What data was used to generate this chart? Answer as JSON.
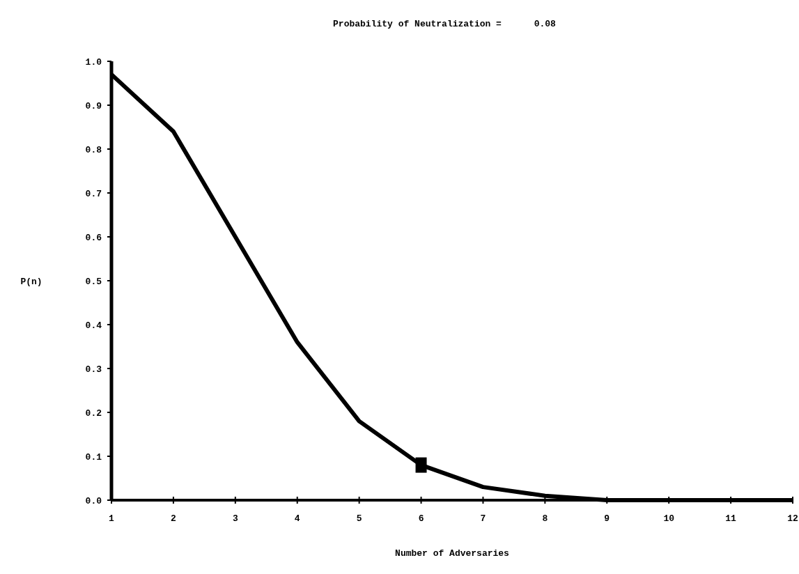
{
  "chart_data": {
    "type": "line",
    "title": "Probability of Neutralization =      0.08",
    "xlabel": "Number of Adversaries",
    "ylabel": "P(n)",
    "x": [
      1,
      2,
      3,
      4,
      5,
      6,
      7,
      8,
      9,
      10,
      11,
      12
    ],
    "xlim": [
      1,
      12
    ],
    "xticks": [
      1,
      2,
      3,
      4,
      5,
      6,
      7,
      8,
      9,
      10,
      11,
      12
    ],
    "ylim": [
      0,
      1
    ],
    "yticks": [
      {
        "value": 0,
        "label": "0.0"
      },
      {
        "value": 0.1,
        "label": "0.1"
      },
      {
        "value": 0.2,
        "label": "0.2"
      },
      {
        "value": 0.3,
        "label": "0.3"
      },
      {
        "value": 0.4,
        "label": "0.4"
      },
      {
        "value": 0.5,
        "label": "0.5"
      },
      {
        "value": 0.6,
        "label": "0.6"
      },
      {
        "value": 0.7,
        "label": "0.7"
      },
      {
        "value": 0.8,
        "label": "0.8"
      },
      {
        "value": 0.9,
        "label": "0.9"
      },
      {
        "value": 1,
        "label": "1.0"
      }
    ],
    "series": [
      {
        "color": "#000000",
        "values": [
          0.97,
          0.84,
          0.6,
          0.36,
          0.18,
          0.08,
          0.03,
          0.01,
          0,
          0,
          0,
          0
        ],
        "marker": "none"
      },
      {
        "type": "scatter",
        "color": "#000000",
        "x": [
          6
        ],
        "values": [
          0.08
        ],
        "marker": "square"
      }
    ]
  }
}
